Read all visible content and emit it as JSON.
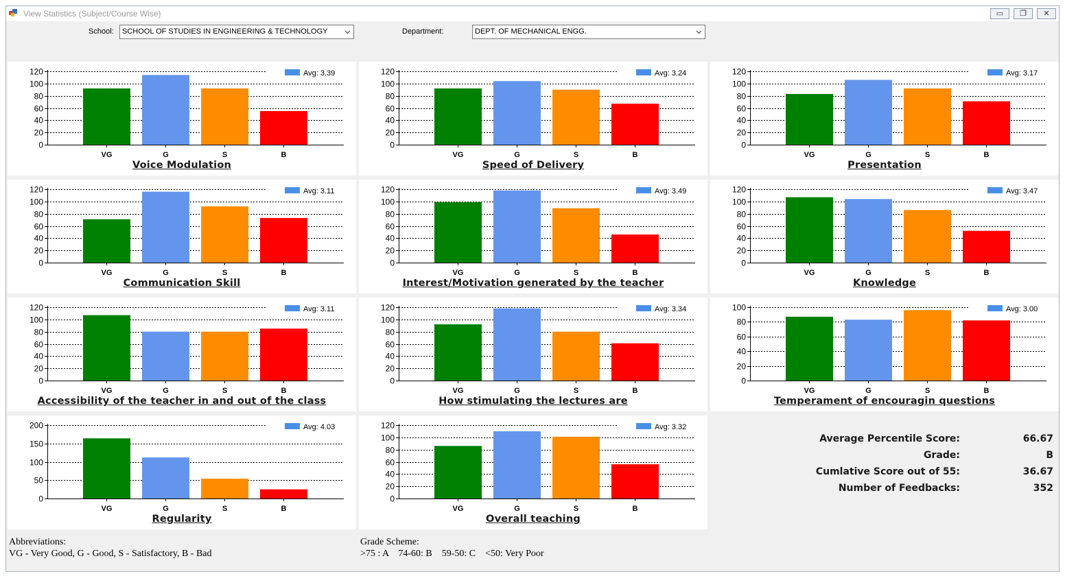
{
  "window": {
    "title": "View Statistics (Subject/Course Wise)",
    "controls": {
      "minimize": "▭",
      "restore": "❐",
      "close": "✕"
    }
  },
  "filters": {
    "school_label": "School:",
    "school_value": "SCHOOL OF STUDIES IN ENGINEERING & TECHNOLOGY",
    "department_label": "Department:",
    "department_value": "DEPT. OF MECHANICAL ENGG."
  },
  "colors": {
    "VG": "#008000",
    "G": "#6495ed",
    "S": "#ff8c00",
    "B": "#ff0000",
    "legend": "#4a8fe7"
  },
  "chart_data": [
    {
      "type": "bar",
      "title": "Voice Modulation",
      "legend": "Avg: 3.39",
      "categories": [
        "VG",
        "G",
        "S",
        "B"
      ],
      "values": [
        92,
        114,
        92,
        55
      ],
      "ylim": [
        0,
        120
      ],
      "yticks": [
        0,
        20,
        40,
        60,
        80,
        100,
        120
      ]
    },
    {
      "type": "bar",
      "title": "Speed of Delivery",
      "legend": "Avg: 3.24",
      "categories": [
        "VG",
        "G",
        "S",
        "B"
      ],
      "values": [
        92,
        104,
        90,
        67
      ],
      "ylim": [
        0,
        120
      ],
      "yticks": [
        0,
        20,
        40,
        60,
        80,
        100,
        120
      ]
    },
    {
      "type": "bar",
      "title": "Presentation",
      "legend": "Avg: 3.17",
      "categories": [
        "VG",
        "G",
        "S",
        "B"
      ],
      "values": [
        83,
        106,
        92,
        71
      ],
      "ylim": [
        0,
        120
      ],
      "yticks": [
        0,
        20,
        40,
        60,
        80,
        100,
        120
      ]
    },
    {
      "type": "bar",
      "title": "Communication Skill",
      "legend": "Avg: 3.11",
      "categories": [
        "VG",
        "G",
        "S",
        "B"
      ],
      "values": [
        71,
        116,
        92,
        73
      ],
      "ylim": [
        0,
        120
      ],
      "yticks": [
        0,
        20,
        40,
        60,
        80,
        100,
        120
      ]
    },
    {
      "type": "bar",
      "title": "Interest/Motivation generated by the teacher",
      "legend": "Avg: 3.49",
      "categories": [
        "VG",
        "G",
        "S",
        "B"
      ],
      "values": [
        99,
        118,
        89,
        46
      ],
      "ylim": [
        0,
        120
      ],
      "yticks": [
        0,
        20,
        40,
        60,
        80,
        100,
        120
      ]
    },
    {
      "type": "bar",
      "title": "Knowledge",
      "legend": "Avg: 3.47",
      "categories": [
        "VG",
        "G",
        "S",
        "B"
      ],
      "values": [
        107,
        104,
        86,
        52
      ],
      "ylim": [
        0,
        120
      ],
      "yticks": [
        0,
        20,
        40,
        60,
        80,
        100,
        120
      ]
    },
    {
      "type": "bar",
      "title": "Accessibility of the teacher in and out of the class",
      "legend": "Avg: 3.11",
      "categories": [
        "VG",
        "G",
        "S",
        "B"
      ],
      "values": [
        107,
        80,
        80,
        85
      ],
      "ylim": [
        0,
        120
      ],
      "yticks": [
        0,
        20,
        40,
        60,
        80,
        100,
        120
      ]
    },
    {
      "type": "bar",
      "title": "How stimulating the lectures are",
      "legend": "Avg: 3.34",
      "categories": [
        "VG",
        "G",
        "S",
        "B"
      ],
      "values": [
        92,
        118,
        80,
        61
      ],
      "ylim": [
        0,
        120
      ],
      "yticks": [
        0,
        20,
        40,
        60,
        80,
        100,
        120
      ]
    },
    {
      "type": "bar",
      "title": "Temperament of encouragin questions",
      "legend": "Avg: 3.00",
      "categories": [
        "VG",
        "G",
        "S",
        "B"
      ],
      "values": [
        87,
        83,
        96,
        82
      ],
      "ylim": [
        0,
        100
      ],
      "yticks": [
        0,
        20,
        40,
        60,
        80,
        100
      ]
    },
    {
      "type": "bar",
      "title": "Regularity",
      "legend": "Avg: 4.03",
      "categories": [
        "VG",
        "G",
        "S",
        "B"
      ],
      "values": [
        164,
        112,
        54,
        25
      ],
      "ylim": [
        0,
        200
      ],
      "yticks": [
        0,
        50,
        100,
        150,
        200
      ]
    },
    {
      "type": "bar",
      "title": "Overall teaching",
      "legend": "Avg: 3.32",
      "categories": [
        "VG",
        "G",
        "S",
        "B"
      ],
      "values": [
        86,
        110,
        101,
        56
      ],
      "ylim": [
        0,
        120
      ],
      "yticks": [
        0,
        20,
        40,
        60,
        80,
        100,
        120
      ]
    }
  ],
  "stats": [
    {
      "label": "Average Percentile Score:",
      "value": "66.67"
    },
    {
      "label": "Grade:",
      "value": "B"
    },
    {
      "label": "Cumlative Score out of 55:",
      "value": "36.67"
    },
    {
      "label": "Number of Feedbacks:",
      "value": "352"
    }
  ],
  "footer": {
    "abbr_title": "Abbreviations:",
    "abbr_text": "VG - Very Good, G - Good, S - Satisfactory, B - Bad",
    "grade_title": "Grade Scheme:",
    "grade_text": ">75 : A    74-60: B    59-50: C    <50: Very Poor"
  }
}
